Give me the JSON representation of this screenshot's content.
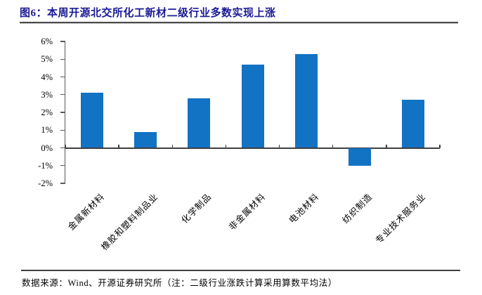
{
  "header": {
    "title": "图6：本周开源北交所化工新材二级行业多数实现上涨"
  },
  "footer": {
    "text": "数据来源：Wind、开源证券研究所（注：二级行业涨跌计算采用算数平均法）"
  },
  "colors": {
    "bar": "#1272c4",
    "title": "#1a1a96",
    "axis": "#595959",
    "zero_line": "#3f3f3f",
    "text": "#000000"
  },
  "chart_data": {
    "type": "bar",
    "title": "本周开源北交所化工新材二级行业多数实现上涨",
    "categories": [
      "金属新材料",
      "橡胶和塑料制品业",
      "化学制品",
      "非金属材料",
      "电池材料",
      "纺织制造",
      "专业技术服务业"
    ],
    "values": [
      3.1,
      0.9,
      2.8,
      4.7,
      5.3,
      -1.0,
      2.7
    ],
    "unit": "%",
    "xlabel": "",
    "ylabel": "",
    "ylim": [
      -2,
      6
    ],
    "ytick_step": 1,
    "ytick_labels": [
      "6%",
      "5%",
      "4%",
      "3%",
      "2%",
      "1%",
      "0%",
      "-1%",
      "-2%"
    ],
    "grid": false,
    "legend": null
  }
}
